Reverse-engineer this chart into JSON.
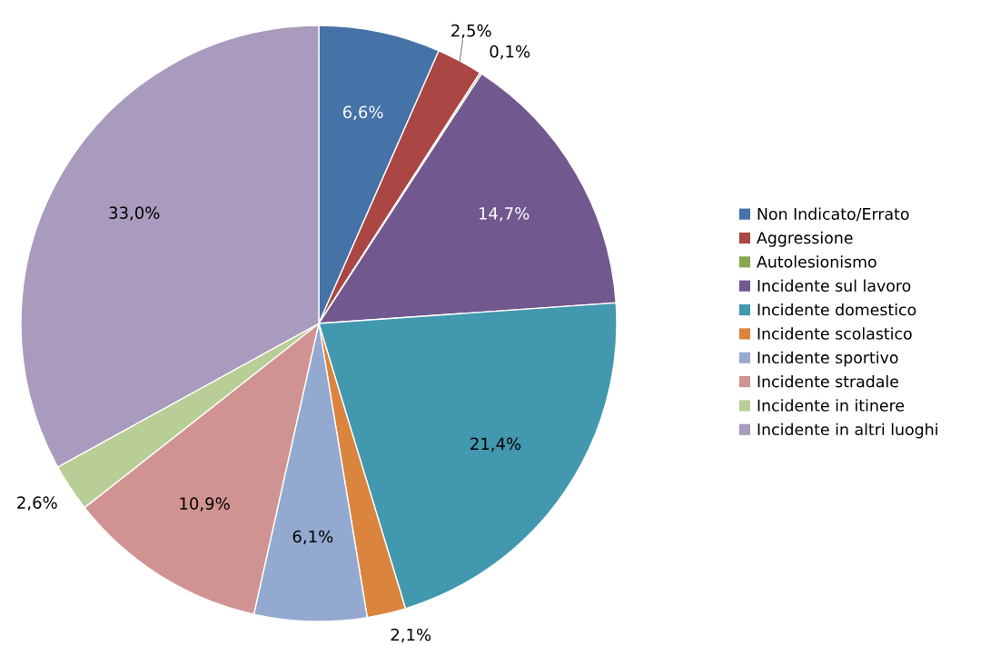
{
  "chart_data": {
    "type": "pie",
    "categories": [
      "Non Indicato/Errato",
      "Aggressione",
      "Autolesionismo",
      "Incidente sul lavoro",
      "Incidente domestico",
      "Incidente scolastico",
      "Incidente sportivo",
      "Incidente stradale",
      "Incidente in itinere",
      "Incidente in altri luoghi"
    ],
    "values": [
      6.6,
      2.5,
      0.1,
      14.7,
      21.4,
      2.1,
      6.1,
      10.9,
      2.6,
      33.0
    ],
    "value_labels": [
      "6,6%",
      "2,5%",
      "0,1%",
      "14,7%",
      "21,4%",
      "2,1%",
      "6,1%",
      "10,9%",
      "2,6%",
      "33,0%"
    ],
    "colors": [
      "#4572a7",
      "#aa4643",
      "#89a54e",
      "#71588f",
      "#4198af",
      "#db843d",
      "#93a9cf",
      "#d19392",
      "#b9cd96",
      "#a99bbd"
    ],
    "legend": "right"
  }
}
